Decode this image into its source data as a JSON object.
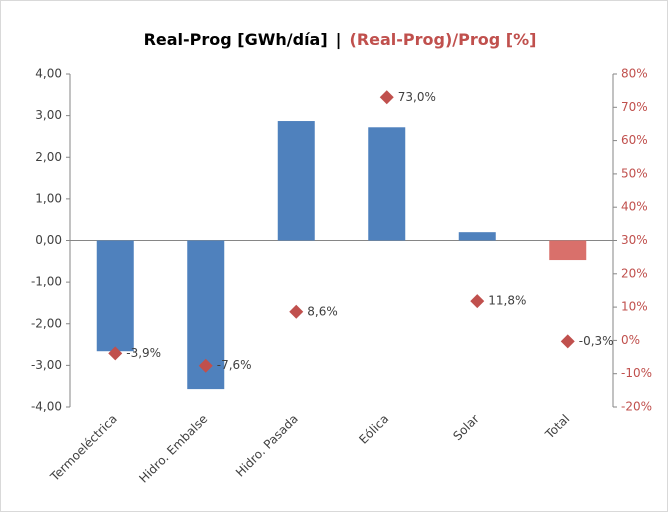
{
  "chart_data": {
    "type": "bar",
    "title": "Real-Prog [GWh/día]",
    "title_separator": "|",
    "title_y2": "(Real-Prog)/Prog [%]",
    "categories": [
      "Termoeléctrica",
      "Hidro. Embalse",
      "Hidro. Pasada",
      "Eólica",
      "Solar",
      "Total"
    ],
    "series": [
      {
        "type": "bar",
        "color": "#4f81bd",
        "colors": [
          "#4f81bd",
          "#4f81bd",
          "#4f81bd",
          "#4f81bd",
          "#4f81bd",
          "#d9706b"
        ],
        "values": [
          -2.66,
          -3.57,
          2.87,
          2.72,
          0.2,
          -0.47
        ]
      },
      {
        "type": "scatter",
        "axis": "y2",
        "color": "#c0504d",
        "values": [
          -3.9,
          -7.6,
          8.6,
          73.0,
          11.8,
          -0.3
        ],
        "value_labels": [
          "-3,9%",
          "-7,6%",
          "8,6%",
          "73,0%",
          "11,8%",
          "-0,3%"
        ]
      }
    ],
    "ylim": [
      -4,
      4
    ],
    "yticks": [
      {
        "value": -4,
        "label": "-4,00"
      },
      {
        "value": -3,
        "label": "-3,00"
      },
      {
        "value": -2,
        "label": "-2,00"
      },
      {
        "value": -1,
        "label": "-1,00"
      },
      {
        "value": 0,
        "label": "0,00"
      },
      {
        "value": 1,
        "label": "1,00"
      },
      {
        "value": 2,
        "label": "2,00"
      },
      {
        "value": 3,
        "label": "3,00"
      },
      {
        "value": 4,
        "label": "4,00"
      }
    ],
    "y2lim": [
      -20,
      80
    ],
    "y2ticks": [
      {
        "value": -20,
        "label": "-20%"
      },
      {
        "value": -10,
        "label": "-10%"
      },
      {
        "value": 0,
        "label": "0%"
      },
      {
        "value": 10,
        "label": "10%"
      },
      {
        "value": 20,
        "label": "20%"
      },
      {
        "value": 30,
        "label": "30%"
      },
      {
        "value": 40,
        "label": "40%"
      },
      {
        "value": 50,
        "label": "50%"
      },
      {
        "value": 60,
        "label": "60%"
      },
      {
        "value": 70,
        "label": "70%"
      },
      {
        "value": 80,
        "label": "80%"
      }
    ],
    "y2_color": "#c0504d"
  }
}
